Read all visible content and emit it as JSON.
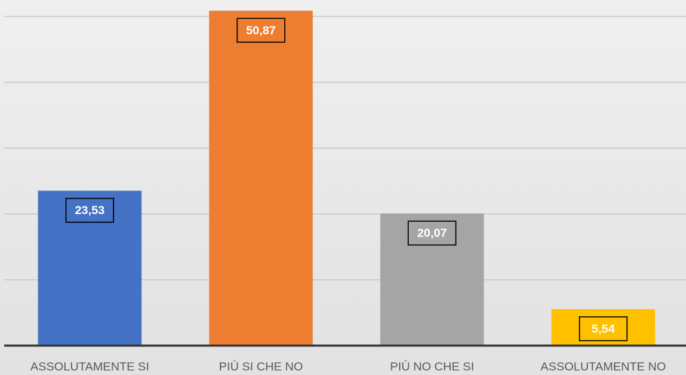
{
  "chart_data": {
    "type": "bar",
    "categories": [
      "ASSOLUTAMENTE SI",
      "PIÙ SI CHE NO",
      "PIÙ NO CHE SI",
      "ASSOLUTAMENTE NO"
    ],
    "values": [
      23.53,
      50.87,
      20.07,
      5.54
    ],
    "value_labels": [
      "23,53",
      "50,87",
      "20,07",
      "5,54"
    ],
    "colors": [
      "#4472c4",
      "#ed7d31",
      "#a5a5a5",
      "#ffc000"
    ],
    "ylim": [
      0,
      52.5
    ],
    "yticks": [
      0,
      10,
      20,
      30,
      40,
      50
    ],
    "grid": true
  }
}
